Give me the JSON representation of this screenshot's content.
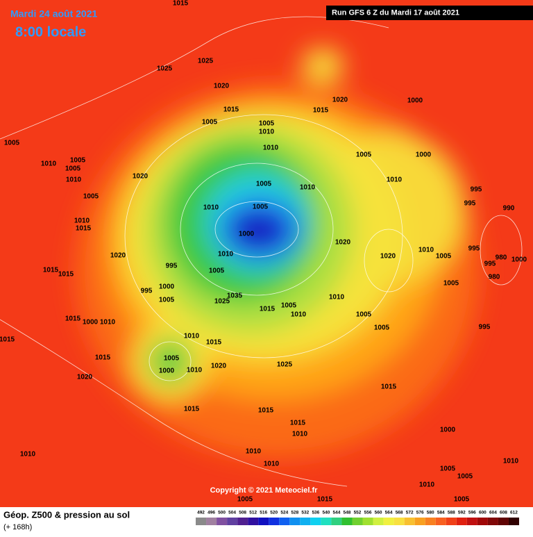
{
  "header": {
    "date": "Mardi 24 août 2021",
    "time": "8:00 locale",
    "run": "Run GFS 6 Z du Mardi 17 août 2021"
  },
  "copyright": "Copyright © 2021 Meteociel.fr",
  "footer": {
    "title": "Géop. Z500 & pression au sol",
    "lead": "(+ 168h)"
  },
  "isobar_labels": [
    1015,
    1025,
    1025,
    1020,
    1015,
    1005,
    1005,
    1010,
    1015,
    1020,
    1000,
    1005,
    1010,
    1005,
    1005,
    1010,
    1005,
    1020,
    1010,
    1005,
    1000,
    1010,
    995,
    995,
    990,
    1005,
    1010,
    1010,
    1005,
    1000,
    1010,
    1015,
    1020,
    995,
    1010,
    1005,
    1020,
    1020,
    1010,
    1005,
    995,
    980,
    1000,
    995,
    980,
    1015,
    1015,
    995,
    1000,
    1005,
    1025,
    1035,
    1015,
    1005,
    1010,
    1010,
    1005,
    1015,
    1000,
    1010,
    1005,
    1005,
    995,
    1015,
    1010,
    1015,
    1005,
    1000,
    1010,
    1020,
    1025,
    1015,
    1020,
    1015,
    1015,
    1015,
    1015,
    1010,
    1000,
    1010,
    1010,
    1010,
    1005,
    1010,
    1005,
    1010,
    1005,
    1015,
    1005
  ],
  "legend": {
    "values": [
      492,
      496,
      500,
      504,
      508,
      512,
      516,
      520,
      524,
      528,
      532,
      536,
      540,
      544,
      548,
      552,
      556,
      560,
      564,
      568,
      572,
      576,
      580,
      584,
      588,
      592,
      596,
      600,
      604,
      608,
      612
    ],
    "colors": [
      "#8a8a8a",
      "#a080a0",
      "#8050a0",
      "#6040a0",
      "#502090",
      "#3010a0",
      "#1010c0",
      "#1030e0",
      "#1060f0",
      "#1090f0",
      "#10b0f0",
      "#10d0f0",
      "#20e0c0",
      "#30d080",
      "#30c030",
      "#70d030",
      "#a0e030",
      "#d0f040",
      "#f0f040",
      "#f8e040",
      "#f8c030",
      "#f8a020",
      "#f88020",
      "#f86020",
      "#f04018",
      "#e02010",
      "#c01010",
      "#a00808",
      "#800808",
      "#600404",
      "#300000"
    ]
  }
}
